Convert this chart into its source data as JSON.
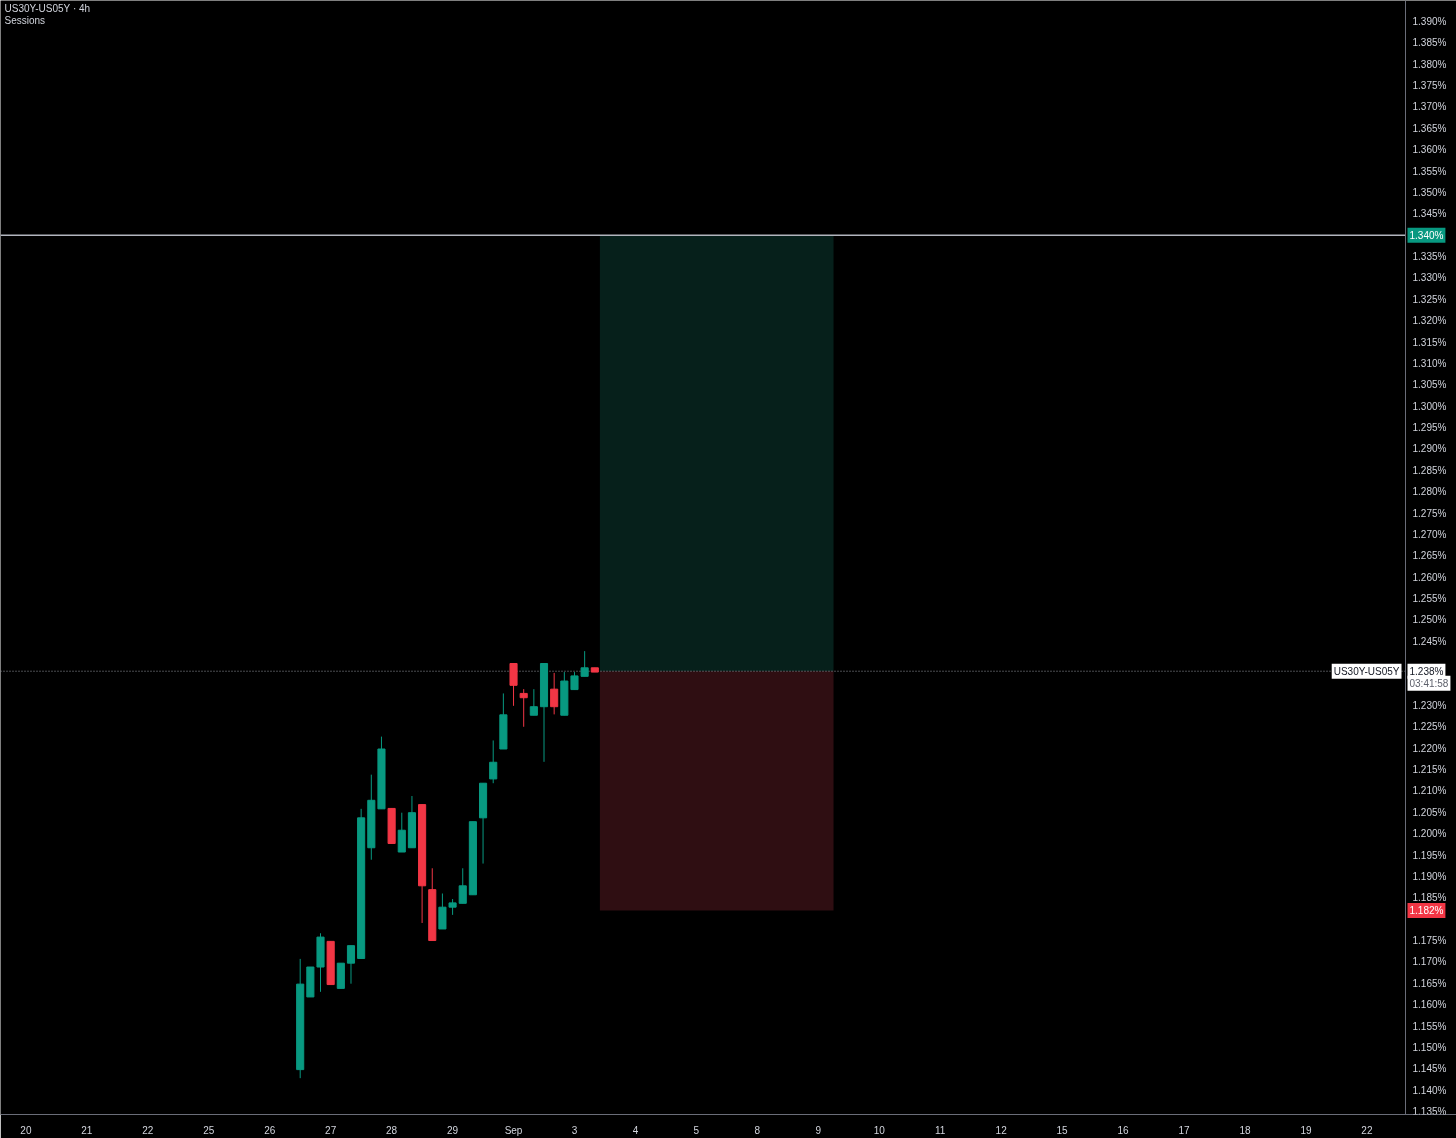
{
  "chart_data": {
    "type": "candlestick",
    "title": "US30Y-US05Y · 4h",
    "subtitle": "Sessions",
    "categories": [
      "20",
      null,
      null,
      null,
      null,
      null,
      "21",
      null,
      null,
      null,
      null,
      null,
      "22",
      null,
      null,
      null,
      null,
      null,
      "25",
      null,
      null,
      null,
      null,
      null,
      "26",
      null,
      null,
      null,
      null,
      null,
      "27",
      null,
      null,
      null,
      null,
      null,
      "28",
      null,
      null,
      null,
      null,
      null,
      "29",
      null,
      null,
      null,
      null,
      null,
      "Sep",
      null,
      null,
      null,
      null,
      null,
      "3",
      null,
      null,
      null,
      null,
      null,
      "4",
      null,
      null,
      null,
      null,
      null,
      "5",
      null,
      null,
      null,
      null,
      null,
      "8",
      null,
      null,
      null,
      null,
      null,
      "9",
      null,
      null,
      null,
      null,
      null,
      "10",
      null,
      null,
      null,
      null,
      null,
      "11",
      null,
      null,
      null,
      null,
      null,
      "12",
      null,
      null,
      null,
      null,
      null,
      "15",
      null,
      null,
      null,
      null,
      null,
      "16",
      null,
      null,
      null,
      null,
      null,
      "17",
      null,
      null,
      null,
      null,
      null,
      "18",
      null,
      null,
      null,
      null,
      null,
      "19",
      null,
      null,
      null,
      null,
      null,
      "22",
      null,
      null,
      null
    ],
    "ohlc": [
      null,
      null,
      null,
      null,
      null,
      null,
      null,
      null,
      null,
      null,
      null,
      null,
      null,
      null,
      null,
      null,
      null,
      null,
      null,
      null,
      null,
      null,
      null,
      null,
      null,
      null,
      null,
      [
        1.1448,
        1.1707,
        1.1428,
        1.1648
      ],
      [
        1.1618,
        1.1688,
        1.1618,
        1.1688
      ],
      [
        1.1688,
        1.1767,
        1.163,
        1.1758
      ],
      [
        1.1748,
        1.1748,
        1.1647,
        1.1647
      ],
      [
        1.1638,
        1.1697,
        1.1638,
        1.1697
      ],
      [
        1.1697,
        1.1738,
        1.1649,
        1.1738
      ],
      [
        1.1708,
        1.2058,
        1.1708,
        1.2037
      ],
      [
        1.1967,
        1.2138,
        1.1939,
        1.2078
      ],
      [
        1.2058,
        1.2227,
        1.2058,
        1.2198
      ],
      [
        1.2059,
        1.2059,
        1.1977,
        1.1977
      ],
      [
        1.1957,
        1.2049,
        1.1957,
        1.2008
      ],
      [
        1.1967,
        1.2088,
        1.1967,
        1.2049
      ],
      [
        1.2068,
        1.2068,
        1.1791,
        1.1878
      ],
      [
        1.1869,
        1.1919,
        1.175,
        1.175
      ],
      [
        1.1777,
        1.186,
        1.1777,
        1.1828
      ],
      [
        1.1828,
        1.1847,
        1.181,
        1.1838
      ],
      [
        1.1837,
        1.1919,
        1.1837,
        1.1878
      ],
      [
        1.1857,
        1.2028,
        1.1857,
        1.2028
      ],
      [
        1.2037,
        1.2118,
        1.193,
        1.2118
      ],
      [
        1.2128,
        1.2218,
        1.2118,
        1.2167
      ],
      [
        1.2198,
        1.2328,
        1.2198,
        1.2278
      ],
      [
        1.2398,
        1.2398,
        1.2299,
        1.2347
      ],
      [
        1.2328,
        1.2338,
        1.225,
        1.2318
      ],
      [
        1.2277,
        1.2338,
        1.2277,
        1.2297
      ],
      [
        1.2297,
        1.2398,
        1.2168,
        1.2398
      ],
      [
        1.2338,
        1.2376,
        1.2279,
        1.2297
      ],
      [
        1.2277,
        1.2378,
        1.2277,
        1.2357
      ],
      [
        1.2337,
        1.2378,
        1.2337,
        1.2369
      ],
      [
        1.2368,
        1.2427,
        1.2368,
        1.2388
      ],
      [
        1.2388,
        1.2388,
        1.2378,
        1.2378
      ],
      null,
      null,
      null,
      null,
      null,
      null,
      null,
      null,
      null,
      null,
      null,
      null,
      null,
      null,
      null,
      null,
      null,
      null,
      null,
      null,
      null,
      null,
      null,
      null,
      null,
      null,
      null,
      null,
      null,
      null,
      null,
      null,
      null,
      null,
      null,
      null,
      null,
      null,
      null,
      null,
      null,
      null,
      null,
      null,
      null,
      null,
      null,
      null,
      null,
      null,
      null,
      null,
      null,
      null,
      null,
      null,
      null,
      null,
      null,
      null,
      null,
      null,
      null,
      null,
      null,
      null,
      null,
      null,
      null,
      null,
      null,
      null,
      null,
      null,
      null,
      null,
      null,
      null,
      null
    ],
    "ylim": [
      1.1343,
      1.3949
    ],
    "yticks": [
      {
        "value": 1.135,
        "label": "1.135%"
      },
      {
        "value": 1.14,
        "label": "1.140%"
      },
      {
        "value": 1.145,
        "label": "1.145%"
      },
      {
        "value": 1.15,
        "label": "1.150%"
      },
      {
        "value": 1.155,
        "label": "1.155%"
      },
      {
        "value": 1.16,
        "label": "1.160%"
      },
      {
        "value": 1.165,
        "label": "1.165%"
      },
      {
        "value": 1.17,
        "label": "1.170%"
      },
      {
        "value": 1.175,
        "label": "1.175%"
      },
      {
        "value": 1.185,
        "label": "1.185%"
      },
      {
        "value": 1.19,
        "label": "1.190%"
      },
      {
        "value": 1.195,
        "label": "1.195%"
      },
      {
        "value": 1.2,
        "label": "1.200%"
      },
      {
        "value": 1.205,
        "label": "1.205%"
      },
      {
        "value": 1.21,
        "label": "1.210%"
      },
      {
        "value": 1.215,
        "label": "1.215%"
      },
      {
        "value": 1.22,
        "label": "1.220%"
      },
      {
        "value": 1.225,
        "label": "1.225%"
      },
      {
        "value": 1.23,
        "label": "1.230%"
      },
      {
        "value": 1.245,
        "label": "1.245%"
      },
      {
        "value": 1.25,
        "label": "1.250%"
      },
      {
        "value": 1.255,
        "label": "1.255%"
      },
      {
        "value": 1.26,
        "label": "1.260%"
      },
      {
        "value": 1.265,
        "label": "1.265%"
      },
      {
        "value": 1.27,
        "label": "1.270%"
      },
      {
        "value": 1.275,
        "label": "1.275%"
      },
      {
        "value": 1.28,
        "label": "1.280%"
      },
      {
        "value": 1.285,
        "label": "1.285%"
      },
      {
        "value": 1.29,
        "label": "1.290%"
      },
      {
        "value": 1.295,
        "label": "1.295%"
      },
      {
        "value": 1.3,
        "label": "1.300%"
      },
      {
        "value": 1.305,
        "label": "1.305%"
      },
      {
        "value": 1.31,
        "label": "1.310%"
      },
      {
        "value": 1.315,
        "label": "1.315%"
      },
      {
        "value": 1.32,
        "label": "1.320%"
      },
      {
        "value": 1.325,
        "label": "1.325%"
      },
      {
        "value": 1.33,
        "label": "1.330%"
      },
      {
        "value": 1.335,
        "label": "1.335%"
      },
      {
        "value": 1.345,
        "label": "1.345%"
      },
      {
        "value": 1.35,
        "label": "1.350%"
      },
      {
        "value": 1.355,
        "label": "1.355%"
      },
      {
        "value": 1.36,
        "label": "1.360%"
      },
      {
        "value": 1.365,
        "label": "1.365%"
      },
      {
        "value": 1.37,
        "label": "1.370%"
      },
      {
        "value": 1.375,
        "label": "1.375%"
      },
      {
        "value": 1.38,
        "label": "1.380%"
      },
      {
        "value": 1.385,
        "label": "1.385%"
      },
      {
        "value": 1.39,
        "label": "1.390%"
      }
    ],
    "bands": [
      {
        "axis": "y",
        "from": 1.238,
        "to": 1.34,
        "color": "#06201b"
      },
      {
        "axis": "y",
        "from": 1.182,
        "to": 1.238,
        "color": "#2f0e12"
      }
    ],
    "ref_lines": [
      {
        "axis": "y",
        "value": 1.34,
        "label": "1.340%",
        "color": "#b2b5be",
        "line_style": "solid"
      },
      {
        "axis": "y",
        "value": 1.238,
        "label": "US30Y-US05Y",
        "color": "#9598a1",
        "line_style": "dotted"
      }
    ],
    "annotations": [
      "1.238%",
      "03:41:58",
      "1.182%"
    ],
    "grid": false
  }
}
